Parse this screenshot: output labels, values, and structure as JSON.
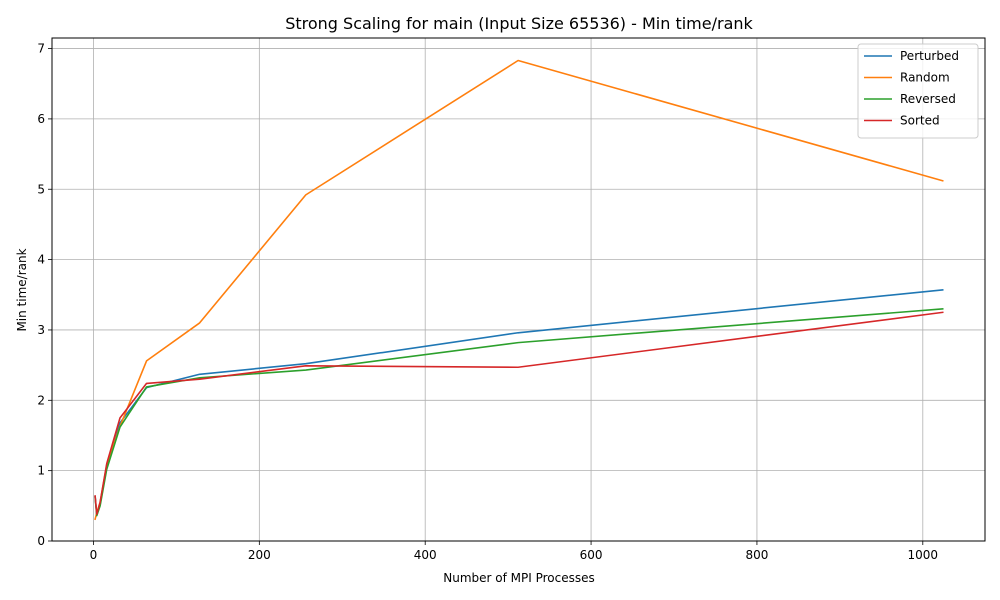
{
  "chart_data": {
    "type": "line",
    "title": "Strong Scaling for main (Input Size 65536) - Min time/rank",
    "xlabel": "Number of MPI Processes",
    "ylabel": "Min time/rank",
    "xlim": [
      -50,
      1075
    ],
    "ylim": [
      0,
      7.15
    ],
    "xticks": [
      0,
      200,
      400,
      600,
      800,
      1000
    ],
    "yticks": [
      0,
      1,
      2,
      3,
      4,
      5,
      6,
      7
    ],
    "grid": true,
    "legend_position": "top-right",
    "x": [
      2,
      4,
      8,
      16,
      32,
      64,
      128,
      256,
      512,
      1024
    ],
    "series": [
      {
        "name": "Perturbed",
        "color": "#1f77b4",
        "values": [
          0.63,
          0.37,
          0.52,
          1.05,
          1.68,
          2.18,
          2.37,
          2.52,
          2.96,
          3.57
        ]
      },
      {
        "name": "Random",
        "color": "#ff7f0e",
        "values": [
          0.31,
          0.4,
          0.55,
          1.08,
          1.63,
          2.56,
          3.1,
          4.92,
          6.83,
          5.12
        ]
      },
      {
        "name": "Reversed",
        "color": "#2ca02c",
        "values": [
          0.62,
          0.36,
          0.5,
          1.02,
          1.62,
          2.19,
          2.32,
          2.43,
          2.82,
          3.3
        ]
      },
      {
        "name": "Sorted",
        "color": "#d62728",
        "values": [
          0.64,
          0.38,
          0.55,
          1.1,
          1.75,
          2.24,
          2.3,
          2.49,
          2.47,
          3.25
        ]
      }
    ]
  }
}
